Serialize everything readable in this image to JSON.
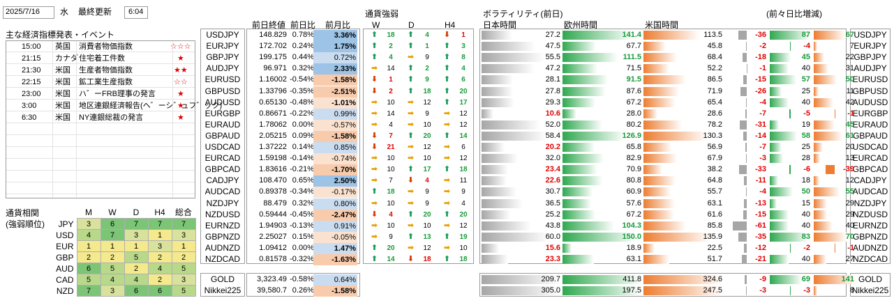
{
  "header": {
    "date": "2025/7/16",
    "weekday": "水",
    "update_label": "最終更新",
    "update_time": "6:04"
  },
  "events": {
    "title": "主な経済指標発表・イベント",
    "rows": [
      {
        "time": "15:00",
        "country": "英国",
        "name": "消費者物価指数",
        "stars": "☆☆☆",
        "hollow": true
      },
      {
        "time": "21:15",
        "country": "カナダ",
        "name": "住宅着工件数",
        "stars": "★",
        "hollow": false
      },
      {
        "time": "21:30",
        "country": "米国",
        "name": "生産者物価指数",
        "stars": "★★",
        "hollow": false
      },
      {
        "time": "22:15",
        "country": "米国",
        "name": "鉱工業生産指数",
        "stars": "☆☆",
        "hollow": true
      },
      {
        "time": "23:00",
        "country": "米国",
        "name": "ハ゛ーFRB理事の発言",
        "stars": "★",
        "hollow": false
      },
      {
        "time": "3:00",
        "country": "米国",
        "name": "地区連銀経済報告(ヘ゛ーシ゛ュフ゛ック)",
        "stars": "★",
        "hollow": false
      },
      {
        "time": "6:30",
        "country": "米国",
        "name": "NY連銀総裁の発言",
        "stars": "★",
        "hollow": false
      }
    ]
  },
  "correlation": {
    "title1": "通貨相関",
    "title2": "(強弱順位)",
    "cols": [
      "M",
      "W",
      "D",
      "H4",
      "総合"
    ],
    "rows": [
      {
        "cur": "JPY",
        "v": [
          3,
          6,
          7,
          7,
          7
        ]
      },
      {
        "cur": "USD",
        "v": [
          4,
          7,
          3,
          1,
          3
        ]
      },
      {
        "cur": "EUR",
        "v": [
          1,
          1,
          1,
          3,
          1
        ]
      },
      {
        "cur": "GBP",
        "v": [
          2,
          2,
          5,
          2,
          2
        ]
      },
      {
        "cur": "AUD",
        "v": [
          6,
          5,
          2,
          4,
          5
        ]
      },
      {
        "cur": "CAD",
        "v": [
          5,
          4,
          4,
          2,
          3
        ]
      },
      {
        "cur": "NZD",
        "v": [
          7,
          3,
          6,
          6,
          5
        ]
      }
    ]
  },
  "columns": {
    "close": "前日終値",
    "dchg": "前日比",
    "mchg": "前月比",
    "strength": "通貨強弱",
    "w": "W",
    "d": "D",
    "h4": "H4",
    "vol": "ボラティリティ(前日)",
    "jp": "日本時間",
    "eu": "欧州時間",
    "us": "米国時間",
    "diff": "(前々日比増減)"
  },
  "pairs": [
    {
      "p": "USDJPY",
      "c": "148.829",
      "d": "0.78%",
      "m": "3.36%",
      "w": [
        "u",
        18
      ],
      "dd": [
        "u",
        4
      ],
      "h": [
        "d",
        1
      ],
      "v": [
        27.2,
        141.4,
        113.5
      ],
      "x": [
        -36,
        87,
        67
      ]
    },
    {
      "p": "EURJPY",
      "c": "172.702",
      "d": "0.24%",
      "m": "1.75%",
      "w": [
        "u",
        2
      ],
      "dd": [
        "u",
        1
      ],
      "h": [
        "u",
        3
      ],
      "v": [
        47.5,
        67.7,
        45.8
      ],
      "x": [
        -2,
        -4,
        7
      ]
    },
    {
      "p": "GBPJPY",
      "c": "199.175",
      "d": "0.44%",
      "m": "0.72%",
      "w": [
        "u",
        4
      ],
      "dd": [
        "s",
        9
      ],
      "h": [
        "u",
        8
      ],
      "v": [
        55.5,
        111.5,
        68.4
      ],
      "x": [
        -18,
        45,
        22
      ]
    },
    {
      "p": "AUDJPY",
      "c": "96.971",
      "d": "0.32%",
      "m": "2.33%",
      "w": [
        "s",
        14
      ],
      "dd": [
        "u",
        2
      ],
      "h": [
        "u",
        4
      ],
      "v": [
        47.2,
        71.5,
        52.2
      ],
      "x": [
        -1,
        40,
        31
      ]
    },
    {
      "p": "EURUSD",
      "c": "1.16002",
      "d": "-0.54%",
      "m": "-1.58%",
      "w": [
        "d",
        1
      ],
      "dd": [
        "u",
        9
      ],
      "h": [
        "u",
        6
      ],
      "v": [
        28.1,
        91.5,
        86.5
      ],
      "x": [
        -15,
        57,
        50
      ]
    },
    {
      "p": "GBPUSD",
      "c": "1.33796",
      "d": "-0.35%",
      "m": "-2.51%",
      "w": [
        "d",
        2
      ],
      "dd": [
        "u",
        18
      ],
      "h": [
        "u",
        20
      ],
      "v": [
        27.8,
        87.6,
        71.9
      ],
      "x": [
        -26,
        25,
        11
      ]
    },
    {
      "p": "AUDUSD",
      "c": "0.65130",
      "d": "-0.48%",
      "m": "-1.01%",
      "w": [
        "s",
        10
      ],
      "dd": [
        "s",
        12
      ],
      "h": [
        "u",
        17
      ],
      "v": [
        29.3,
        67.2,
        65.4
      ],
      "x": [
        -4,
        40,
        42
      ]
    },
    {
      "p": "EURGBP",
      "c": "0.86671",
      "d": "-0.22%",
      "m": "0.99%",
      "w": [
        "s",
        14
      ],
      "dd": [
        "s",
        9
      ],
      "h": [
        "s",
        12
      ],
      "v": [
        10.6,
        28.0,
        28.6
      ],
      "x": [
        -7,
        -5,
        -1
      ]
    },
    {
      "p": "EURAUD",
      "c": "1.78062",
      "d": "0.00%",
      "m": "-0.57%",
      "w": [
        "s",
        4
      ],
      "dd": [
        "s",
        10
      ],
      "h": [
        "s",
        12
      ],
      "v": [
        52.0,
        80.2,
        78.2
      ],
      "x": [
        -31,
        19,
        45
      ]
    },
    {
      "p": "GBPAUD",
      "c": "2.05215",
      "d": "0.09%",
      "m": "-1.58%",
      "w": [
        "d",
        7
      ],
      "dd": [
        "u",
        20
      ],
      "h": [
        "u",
        14
      ],
      "v": [
        58.4,
        126.9,
        130.3
      ],
      "x": [
        -14,
        58,
        61
      ]
    },
    {
      "p": "USDCAD",
      "c": "1.37222",
      "d": "0.14%",
      "m": "0.85%",
      "w": [
        "d",
        21
      ],
      "dd": [
        "s",
        12
      ],
      "h": [
        "s",
        6
      ],
      "v": [
        20.2,
        65.8,
        56.9
      ],
      "x": [
        -7,
        25,
        20
      ]
    },
    {
      "p": "EURCAD",
      "c": "1.59198",
      "d": "-0.14%",
      "m": "-0.74%",
      "w": [
        "s",
        10
      ],
      "dd": [
        "s",
        10
      ],
      "h": [
        "s",
        12
      ],
      "v": [
        32.0,
        82.9,
        67.9
      ],
      "x": [
        -3,
        28,
        13
      ]
    },
    {
      "p": "GBPCAD",
      "c": "1.83616",
      "d": "-0.21%",
      "m": "-1.70%",
      "w": [
        "s",
        10
      ],
      "dd": [
        "u",
        17
      ],
      "h": [
        "u",
        18
      ],
      "v": [
        23.4,
        70.9,
        38.2
      ],
      "x": [
        -33,
        -6,
        -39
      ]
    },
    {
      "p": "CADJPY",
      "c": "108.470",
      "d": "0.65%",
      "m": "2.50%",
      "w": [
        "s",
        7
      ],
      "dd": [
        "d",
        4
      ],
      "h": [
        "s",
        11
      ],
      "v": [
        22.6,
        80.8,
        64.8
      ],
      "x": [
        -11,
        18,
        12
      ]
    },
    {
      "p": "AUDCAD",
      "c": "0.89378",
      "d": "-0.34%",
      "m": "-0.17%",
      "w": [
        "u",
        18
      ],
      "dd": [
        "s",
        9
      ],
      "h": [
        "s",
        9
      ],
      "v": [
        30.7,
        60.9,
        55.7
      ],
      "x": [
        -4,
        50,
        55
      ]
    },
    {
      "p": "NZDJPY",
      "c": "88.479",
      "d": "0.32%",
      "m": "0.80%",
      "w": [
        "s",
        10
      ],
      "dd": [
        "s",
        9
      ],
      "h": [
        "s",
        4
      ],
      "v": [
        36.5,
        57.6,
        63.1
      ],
      "x": [
        -13,
        15,
        29
      ]
    },
    {
      "p": "NZDUSD",
      "c": "0.59444",
      "d": "-0.45%",
      "m": "-2.47%",
      "w": [
        "d",
        4
      ],
      "dd": [
        "u",
        20
      ],
      "h": [
        "u",
        20
      ],
      "v": [
        25.2,
        67.2,
        61.6
      ],
      "x": [
        -15,
        40,
        29
      ]
    },
    {
      "p": "EURNZD",
      "c": "1.94903",
      "d": "-0.13%",
      "m": "0.91%",
      "w": [
        "s",
        10
      ],
      "dd": [
        "s",
        10
      ],
      "h": [
        "s",
        12
      ],
      "v": [
        43.8,
        104.3,
        85.8
      ],
      "x": [
        -61,
        40,
        40
      ]
    },
    {
      "p": "GBPNZD",
      "c": "2.25027",
      "d": "0.15%",
      "m": "-0.05%",
      "w": [
        "s",
        9
      ],
      "dd": [
        "u",
        13
      ],
      "h": [
        "u",
        19
      ],
      "v": [
        60.0,
        150.0,
        135.9
      ],
      "x": [
        -35,
        83,
        70
      ]
    },
    {
      "p": "AUDNZD",
      "c": "1.09412",
      "d": "0.00%",
      "m": "1.47%",
      "w": [
        "u",
        20
      ],
      "dd": [
        "s",
        12
      ],
      "h": [
        "s",
        10
      ],
      "v": [
        15.6,
        18.9,
        22.5
      ],
      "x": [
        -12,
        -2,
        -1
      ]
    },
    {
      "p": "NZDCAD",
      "c": "0.81578",
      "d": "-0.32%",
      "m": "-1.63%",
      "w": [
        "u",
        14
      ],
      "dd": [
        "d",
        18
      ],
      "h": [
        "u",
        18
      ],
      "v": [
        23.3,
        63.1,
        51.7
      ],
      "x": [
        -21,
        40,
        27
      ]
    }
  ],
  "extra": [
    {
      "p": "GOLD",
      "c": "3,323.49",
      "d": "-0.58%",
      "m": "0.64%",
      "v": [
        209.7,
        411.8,
        324.6
      ],
      "x": [
        -9,
        69,
        141
      ]
    },
    {
      "p": "Nikkei225",
      "c": "39,580.7",
      "d": "0.26%",
      "m": "-1.58%",
      "v": [
        305.0,
        197.5,
        247.5
      ],
      "x": [
        -3,
        -3,
        8
      ]
    }
  ],
  "colors": {
    "up": "#1a9a5a",
    "down": "#d73a00",
    "side": "#e8a000",
    "green_bar": "#2fa84f",
    "orange_bar": "#ed7d31",
    "grey_bar": "#a6a6a6"
  }
}
